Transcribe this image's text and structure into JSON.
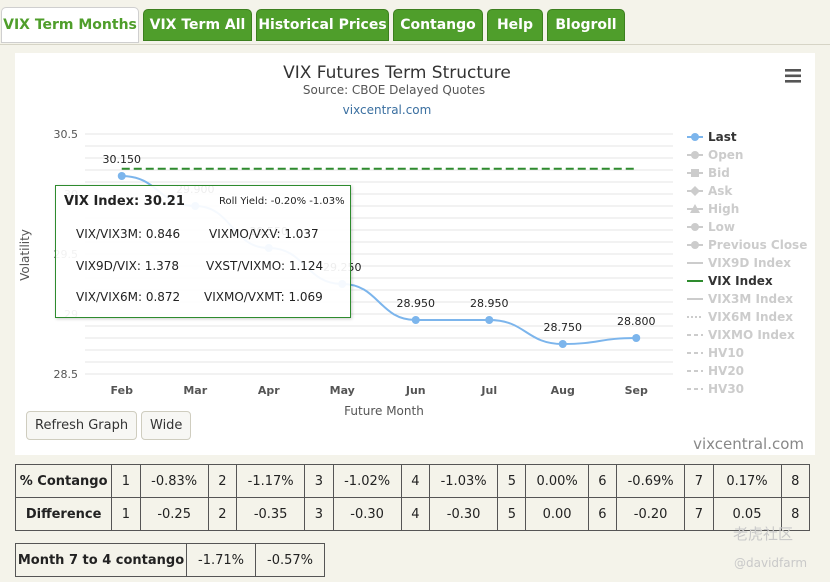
{
  "tabs": [
    "VIX Term Months",
    "VIX Term All",
    "Historical Prices",
    "Contango",
    "Help",
    "Blogroll"
  ],
  "chart_data": {
    "type": "line",
    "title": "VIX Futures Term Structure",
    "subtitle": "Source: CBOE Delayed Quotes",
    "credit_top": "vixcentral.com",
    "credit_bottom": "vixcentral.com",
    "xlabel": "Future Month",
    "ylabel": "Volatility",
    "categories": [
      "Feb",
      "Mar",
      "Apr",
      "May",
      "Jun",
      "Jul",
      "Aug",
      "Sep"
    ],
    "ylim": [
      28.5,
      30.5
    ],
    "yticks": [
      "30.5",
      "30",
      "29.5",
      "29",
      "28.5"
    ],
    "grid": true,
    "legend_position": "right",
    "series": [
      {
        "name": "Last",
        "color": "#7cb5ec",
        "values": [
          30.15,
          29.9,
          29.55,
          29.25,
          28.95,
          28.95,
          28.75,
          28.8
        ],
        "labels": [
          "30.150",
          "29.900",
          "29.550",
          "29.250",
          "28.950",
          "28.950",
          "28.750",
          "28.800"
        ]
      },
      {
        "name": "VIX Index",
        "color": "#2e8b2e",
        "dashed": true,
        "values": [
          30.21,
          30.21,
          30.21,
          30.21,
          30.21,
          30.21,
          30.21,
          30.21
        ]
      }
    ],
    "legend": [
      {
        "label": "Last",
        "active": true,
        "style": "dot"
      },
      {
        "label": "Open",
        "active": false,
        "style": "dot"
      },
      {
        "label": "Bid",
        "active": false,
        "style": "square"
      },
      {
        "label": "Ask",
        "active": false,
        "style": "diamond"
      },
      {
        "label": "High",
        "active": false,
        "style": "triangle"
      },
      {
        "label": "Low",
        "active": false,
        "style": "dot"
      },
      {
        "label": "Previous Close",
        "active": false,
        "style": "dot"
      },
      {
        "label": "VIX9D Index",
        "active": false,
        "style": "line"
      },
      {
        "label": "VIX Index",
        "active": true,
        "style": "line",
        "color": "#2e8b2e"
      },
      {
        "label": "VIX3M Index",
        "active": false,
        "style": "line"
      },
      {
        "label": "VIX6M Index",
        "active": false,
        "style": "dotted"
      },
      {
        "label": "VIXMO Index",
        "active": false,
        "style": "dash"
      },
      {
        "label": "HV10",
        "active": false,
        "style": "dash"
      },
      {
        "label": "HV20",
        "active": false,
        "style": "dash"
      },
      {
        "label": "HV30",
        "active": false,
        "style": "dash"
      }
    ]
  },
  "tooltip": {
    "title": "VIX Index: 30.21",
    "roll_yield": "Roll Yield: -0.20% -1.03%",
    "r1c1": "VIX/VIX3M: 0.846",
    "r1c2": "VIXMO/VXV: 1.037",
    "r2c1": "VIX9D/VIX: 1.378",
    "r2c2": "VXST/VIXMO: 1.124",
    "r3c1": "VIX/VIX6M: 0.872",
    "r3c2": "VIXMO/VXMT: 1.069"
  },
  "buttons": {
    "refresh": "Refresh Graph",
    "wide": "Wide"
  },
  "contango_table": {
    "rows": [
      {
        "label": "% Contango",
        "cells": [
          "1",
          "-0.83%",
          "2",
          "-1.17%",
          "3",
          "-1.02%",
          "4",
          "-1.03%",
          "5",
          "0.00%",
          "6",
          "-0.69%",
          "7",
          "0.17%",
          "8"
        ]
      },
      {
        "label": "Difference",
        "cells": [
          "1",
          "-0.25",
          "2",
          "-0.35",
          "3",
          "-0.30",
          "4",
          "-0.30",
          "5",
          "0.00",
          "6",
          "-0.20",
          "7",
          "0.05",
          "8"
        ]
      }
    ]
  },
  "month7_table": {
    "label": "Month 7 to 4 contango",
    "v1": "-1.71%",
    "v2": "-0.57%"
  },
  "watermark": {
    "text": "老虎社区",
    "handle": "@davidfarm"
  }
}
